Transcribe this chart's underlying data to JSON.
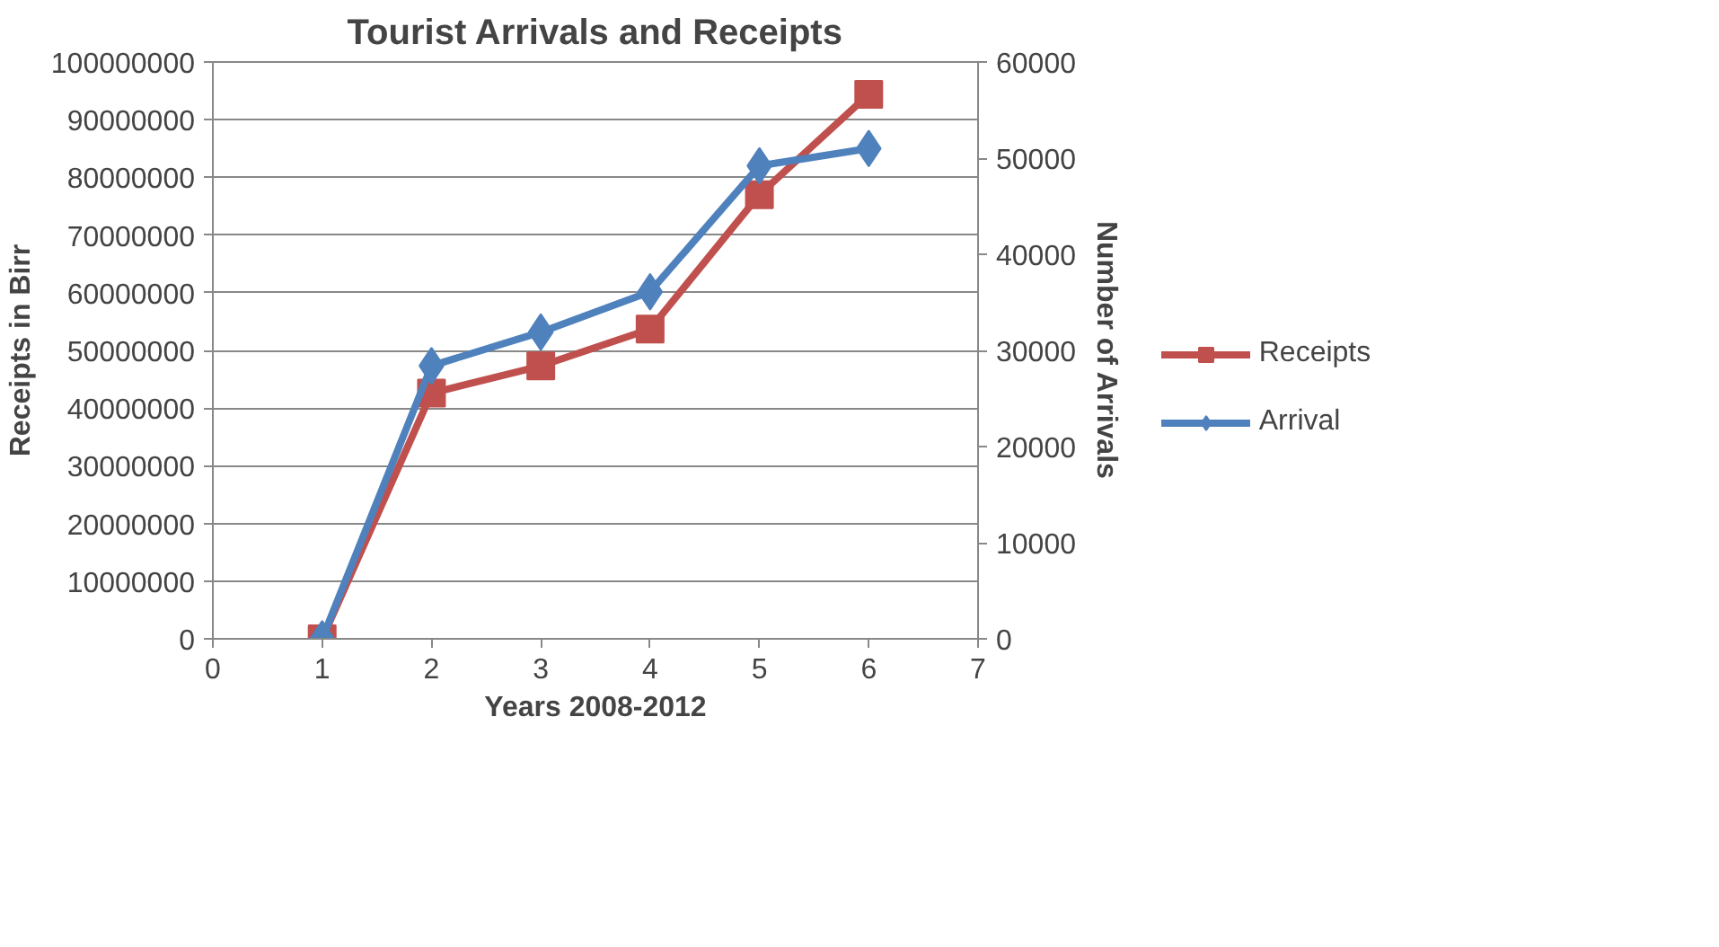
{
  "chart_data": {
    "type": "line",
    "title": "Tourist Arrivals and Receipts",
    "xlabel": "Years 2008-2012",
    "ylabel": "Receipts in Birr",
    "y2label": "Number of Arrivals",
    "x": [
      1,
      2,
      3,
      4,
      5,
      6
    ],
    "series": [
      {
        "name": "Receipts",
        "color": "#c0504d",
        "marker": "square",
        "values": [
          0,
          42600000,
          47300000,
          53700000,
          77000000,
          94400000
        ]
      },
      {
        "name": "Arrival",
        "color": "#4f81bd",
        "marker": "diamond",
        "axis": "y2",
        "values": [
          0,
          28400,
          31900,
          36100,
          49200,
          51000
        ]
      }
    ],
    "xlim": [
      0,
      7
    ],
    "xticks": [
      0,
      1,
      2,
      3,
      4,
      5,
      6,
      7
    ],
    "ylim": [
      0,
      100000000
    ],
    "yticks": [
      0,
      10000000,
      20000000,
      30000000,
      40000000,
      50000000,
      60000000,
      70000000,
      80000000,
      90000000,
      100000000
    ],
    "y2lim": [
      0,
      60000
    ],
    "y2ticks": [
      0,
      10000,
      20000,
      30000,
      40000,
      50000,
      60000
    ],
    "grid": "y",
    "legend": "right",
    "line_style": "solid"
  }
}
